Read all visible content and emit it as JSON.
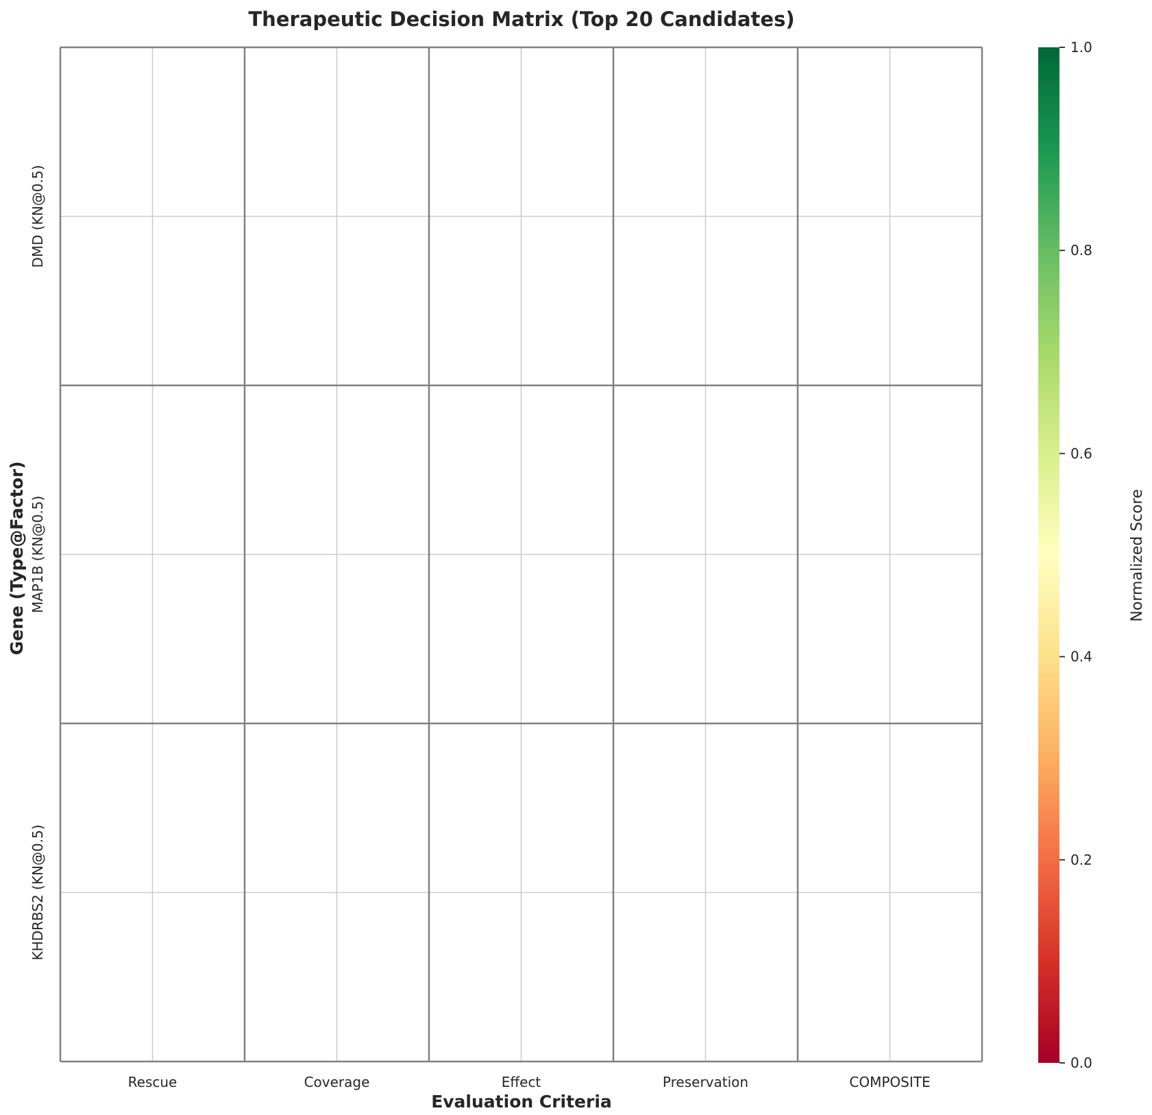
{
  "chart_data": {
    "type": "heatmap",
    "title": "Therapeutic Decision Matrix (Top 20 Candidates)",
    "xlabel": "Evaluation Criteria",
    "ylabel": "Gene (Type@Factor)",
    "x_categories": [
      "Rescue",
      "Coverage",
      "Effect",
      "Preservation",
      "COMPOSITE"
    ],
    "y_categories": [
      "DMD (KN@0.5)",
      "MAP1B (KN@0.5)",
      "KHDRBS2 (KN@0.5)"
    ],
    "values": [
      [
        null,
        null,
        null,
        null,
        null
      ],
      [
        null,
        null,
        null,
        null,
        null
      ],
      [
        null,
        null,
        null,
        null,
        null
      ]
    ],
    "colorbar": {
      "label": "Normalized Score",
      "colormap": "RdYlGn",
      "range": [
        0.0,
        1.0
      ],
      "ticks": [
        "0.0",
        "0.2",
        "0.4",
        "0.6",
        "0.8",
        "1.0"
      ]
    },
    "grid": true,
    "colors": {
      "cell_border": "#808080",
      "gridline": "#cccccc",
      "background": "#ffffff"
    }
  }
}
